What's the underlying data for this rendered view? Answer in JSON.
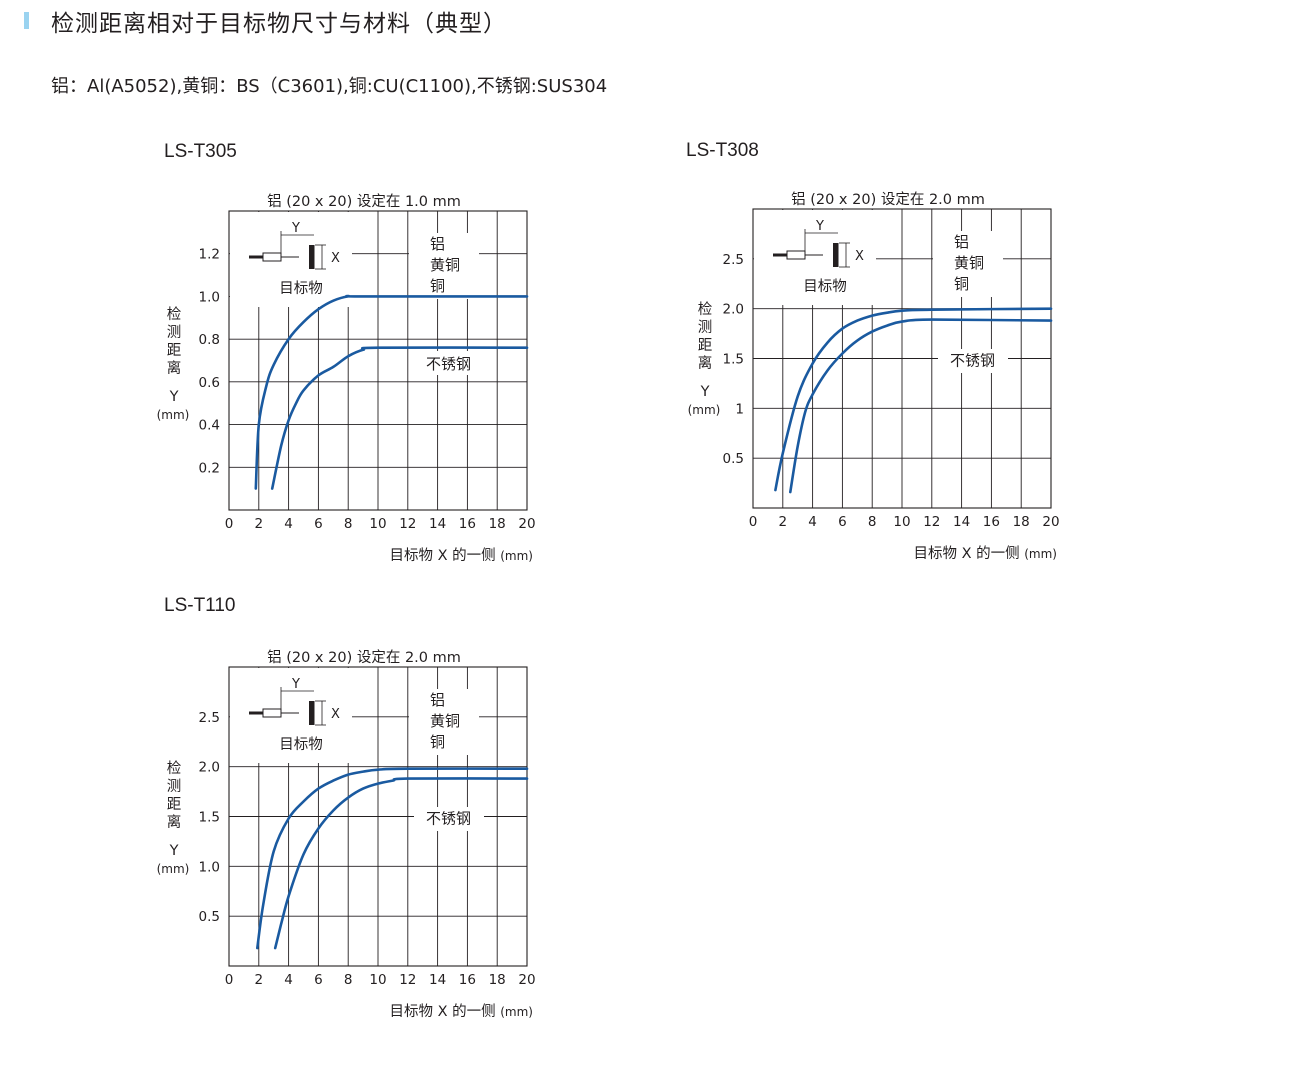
{
  "header": {
    "title": "检测距离相对于目标物尺寸与材料（典型）",
    "materials": "铝：Al(A5052),黄铜：BS（C3601),铜:CU(C1100),不锈钢:SUS304"
  },
  "colors": {
    "accent_bar": "#9ad3f0",
    "curve": "#1a5aa0",
    "grid": "#231f20"
  },
  "chart_data": [
    {
      "type": "line",
      "model": "LS-T305",
      "title": "铝 (20 x 20) 设定在 1.0 mm",
      "xlabel": "目标物 X 的一侧",
      "xunit": "(mm)",
      "ylabel_chars": [
        "检",
        "测",
        "距",
        "离"
      ],
      "ylabel_sym": "Y",
      "yunit": "(mm)",
      "xlim": [
        0,
        20
      ],
      "ylim": [
        0,
        1.4
      ],
      "x_ticks": [
        "0",
        "2",
        "4",
        "6",
        "8",
        "10",
        "12",
        "14",
        "16",
        "18",
        "20"
      ],
      "y_ticks": [
        {
          "v": 0.2,
          "label": "0.2"
        },
        {
          "v": 0.4,
          "label": "0.4"
        },
        {
          "v": 0.6,
          "label": "0.6"
        },
        {
          "v": 0.8,
          "label": "0.8"
        },
        {
          "v": 1.0,
          "label": "1.0"
        },
        {
          "v": 1.2,
          "label": "1.2"
        }
      ],
      "grid": true,
      "diagram": {
        "y": "Y",
        "x": "X",
        "target": "目标物"
      },
      "annotations": [
        [
          "铝",
          "黄铜",
          "铜"
        ],
        [
          "不锈钢"
        ]
      ],
      "series": [
        {
          "x": [
            1.8,
            2.0,
            2.5,
            3.0,
            4.0,
            5.0,
            6.0,
            7.0,
            8.0,
            9.0,
            20.0
          ],
          "y": [
            0.1,
            0.4,
            0.58,
            0.68,
            0.8,
            0.88,
            0.94,
            0.98,
            1.0,
            1.0,
            1.0
          ]
        },
        {
          "x": [
            2.9,
            3.5,
            4.0,
            4.5,
            5.0,
            6.0,
            7.0,
            8.0,
            9.0,
            10.0,
            20.0
          ],
          "y": [
            0.1,
            0.3,
            0.42,
            0.5,
            0.56,
            0.63,
            0.67,
            0.72,
            0.75,
            0.76,
            0.76
          ]
        }
      ]
    },
    {
      "type": "line",
      "model": "LS-T308",
      "title": "铝 (20 x 20) 设定在 2.0 mm",
      "xlabel": "目标物 X 的一侧",
      "xunit": "(mm)",
      "ylabel_chars": [
        "检",
        "测",
        "距",
        "离"
      ],
      "ylabel_sym": "Y",
      "yunit": "(mm)",
      "xlim": [
        0,
        20
      ],
      "ylim": [
        0,
        3.0
      ],
      "x_ticks": [
        "0",
        "2",
        "4",
        "6",
        "8",
        "10",
        "12",
        "14",
        "16",
        "18",
        "20"
      ],
      "y_ticks": [
        {
          "v": 0.5,
          "label": "0.5"
        },
        {
          "v": 1.0,
          "label": "1"
        },
        {
          "v": 1.5,
          "label": "1.5"
        },
        {
          "v": 2.0,
          "label": "2.0"
        },
        {
          "v": 2.5,
          "label": "2.5"
        }
      ],
      "grid": true,
      "diagram": {
        "y": "Y",
        "x": "X",
        "target": "目标物"
      },
      "annotations": [
        [
          "铝",
          "黄铜",
          "铜"
        ],
        [
          "不锈钢"
        ]
      ],
      "series": [
        {
          "x": [
            1.5,
            2.0,
            3.0,
            4.0,
            5.0,
            6.0,
            7.0,
            8.0,
            9.0,
            10.0,
            12.0,
            20.0
          ],
          "y": [
            0.18,
            0.55,
            1.12,
            1.45,
            1.66,
            1.8,
            1.88,
            1.93,
            1.96,
            1.98,
            1.99,
            2.0
          ]
        },
        {
          "x": [
            2.5,
            3.0,
            3.5,
            4.0,
            5.0,
            6.0,
            7.0,
            8.0,
            9.0,
            10.0,
            12.0,
            20.0
          ],
          "y": [
            0.16,
            0.62,
            0.96,
            1.14,
            1.38,
            1.55,
            1.68,
            1.77,
            1.83,
            1.87,
            1.89,
            1.88
          ]
        }
      ]
    },
    {
      "type": "line",
      "model": "LS-T110",
      "title": "铝 (20 x 20) 设定在 2.0 mm",
      "xlabel": "目标物 X 的一侧",
      "xunit": "(mm)",
      "ylabel_chars": [
        "检",
        "测",
        "距",
        "离"
      ],
      "ylabel_sym": "Y",
      "yunit": "(mm)",
      "xlim": [
        0,
        20
      ],
      "ylim": [
        0,
        3.0
      ],
      "x_ticks": [
        "0",
        "2",
        "4",
        "6",
        "8",
        "10",
        "12",
        "14",
        "16",
        "18",
        "20"
      ],
      "y_ticks": [
        {
          "v": 0.5,
          "label": "0.5"
        },
        {
          "v": 1.0,
          "label": "1.0"
        },
        {
          "v": 1.5,
          "label": "1.5"
        },
        {
          "v": 2.0,
          "label": "2.0"
        },
        {
          "v": 2.5,
          "label": "2.5"
        }
      ],
      "grid": true,
      "diagram": {
        "y": "Y",
        "x": "X",
        "target": "目标物"
      },
      "annotations": [
        [
          "铝",
          "黄铜",
          "铜"
        ],
        [
          "不锈钢"
        ]
      ],
      "series": [
        {
          "x": [
            1.9,
            2.3,
            3.0,
            4.0,
            5.0,
            6.0,
            7.0,
            8.0,
            9.0,
            10.0,
            12.0,
            20.0
          ],
          "y": [
            0.18,
            0.62,
            1.15,
            1.48,
            1.65,
            1.78,
            1.86,
            1.92,
            1.95,
            1.97,
            1.98,
            1.98
          ]
        },
        {
          "x": [
            3.1,
            3.5,
            4.0,
            5.0,
            6.0,
            7.0,
            8.0,
            9.0,
            10.0,
            11.0,
            12.0,
            20.0
          ],
          "y": [
            0.18,
            0.42,
            0.7,
            1.12,
            1.38,
            1.56,
            1.69,
            1.78,
            1.83,
            1.86,
            1.88,
            1.88
          ]
        }
      ]
    }
  ]
}
